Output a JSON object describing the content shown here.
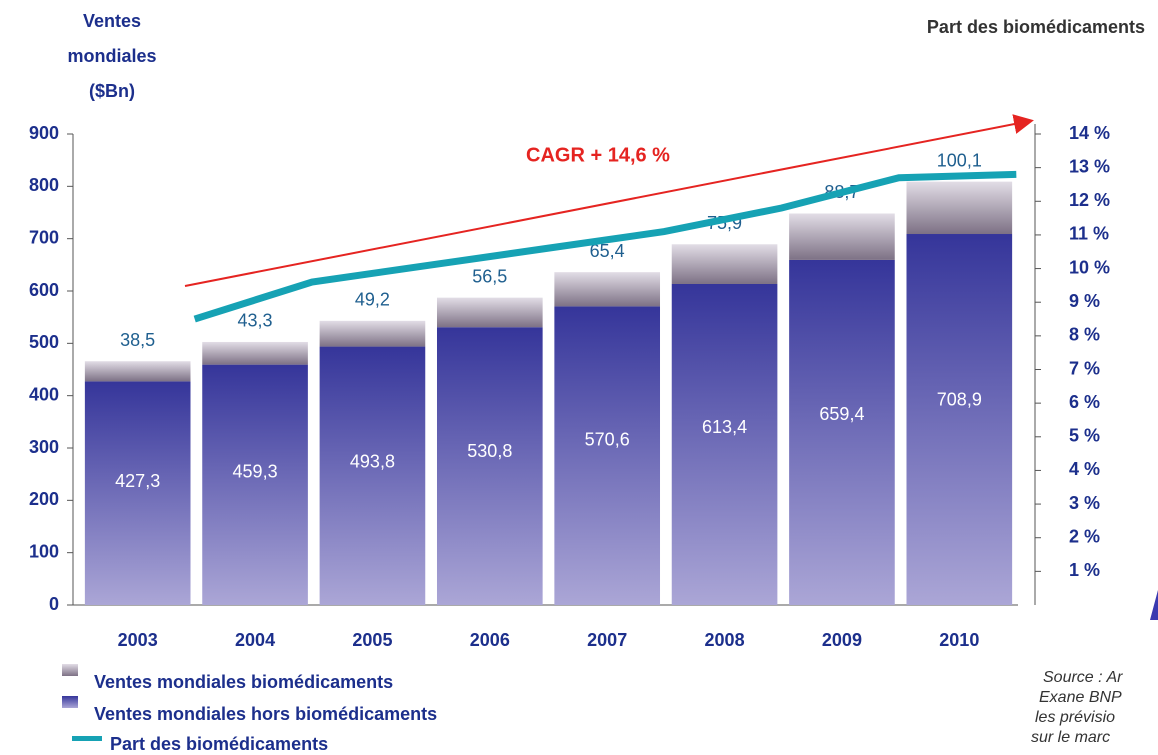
{
  "chart_data": {
    "type": "bar",
    "y_label": [
      "Ventes",
      "mondiales",
      "($Bn)"
    ],
    "y2_label": "Part des biomédicaments",
    "annotation": "CAGR + 14,6 %",
    "categories": [
      "2003",
      "2004",
      "2005",
      "2006",
      "2007",
      "2008",
      "2009",
      "2010"
    ],
    "series": [
      {
        "name": "Ventes mondiales hors biomédicaments",
        "color": "#35359a",
        "values": [
          427.3,
          459.3,
          493.8,
          530.8,
          570.6,
          613.4,
          659.4,
          708.9
        ],
        "value_labels": [
          "427,3",
          "459,3",
          "493,8",
          "530,8",
          "570,6",
          "613,4",
          "659,4",
          "708,9"
        ]
      },
      {
        "name": "Ventes mondiales biomédicaments",
        "color": "#7d7185",
        "values": [
          38.5,
          43.3,
          49.2,
          56.5,
          65.4,
          75.9,
          88.7,
          100.1
        ],
        "value_labels": [
          "38,5",
          "43,3",
          "49,2",
          "56,5",
          "65,4",
          "75,9",
          "88,7",
          "100,1"
        ]
      },
      {
        "name": "Part des biomédicaments",
        "color": "#16a2b4",
        "type": "line",
        "axis": "y2",
        "values": [
          8.5,
          9.6,
          10.1,
          10.6,
          11.1,
          11.8,
          12.7,
          12.8
        ]
      }
    ],
    "ylim": [
      0,
      900
    ],
    "yticks": [
      0,
      100,
      200,
      300,
      400,
      500,
      600,
      700,
      800,
      900
    ],
    "y2lim": [
      0,
      14
    ],
    "y2ticks": [
      {
        "value": 1,
        "label": "1 %"
      },
      {
        "value": 2,
        "label": "2 %"
      },
      {
        "value": 3,
        "label": "3 %"
      },
      {
        "value": 4,
        "label": "4 %"
      },
      {
        "value": 5,
        "label": "5 %"
      },
      {
        "value": 6,
        "label": "6 %"
      },
      {
        "value": 7,
        "label": "7 %"
      },
      {
        "value": 8,
        "label": "8 %"
      },
      {
        "value": 9,
        "label": "9 %"
      },
      {
        "value": 10,
        "label": "10 %"
      },
      {
        "value": 11,
        "label": "11 %"
      },
      {
        "value": 12,
        "label": "12 %"
      },
      {
        "value": 13,
        "label": "13 %"
      },
      {
        "value": 14,
        "label": "14 %"
      }
    ],
    "source": [
      "Source : Ar",
      "Exane BNP",
      "les prévisio",
      "sur le marc"
    ]
  }
}
